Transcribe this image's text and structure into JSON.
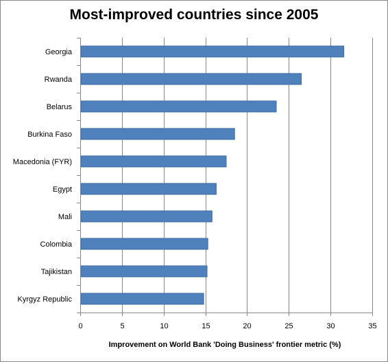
{
  "chart_data": {
    "type": "bar",
    "orientation": "horizontal",
    "title": "Most-improved countries since 2005",
    "xlabel": "Improvement on World Bank 'Doing Business' frontier metric (%)",
    "ylabel": "",
    "xlim": [
      0,
      35
    ],
    "xticks": [
      0,
      5,
      10,
      15,
      20,
      25,
      30,
      35
    ],
    "grid": "vertical",
    "legend": "none",
    "categories": [
      "Georgia",
      "Rwanda",
      "Belarus",
      "Burkina Faso",
      "Macedonia (FYR)",
      "Egypt",
      "Mali",
      "Colombia",
      "Tajikistan",
      "Kyrgyz Republic"
    ],
    "values": [
      31.6,
      26.5,
      23.5,
      18.5,
      17.5,
      16.3,
      15.8,
      15.3,
      15.2,
      14.8
    ],
    "colors": {
      "bar": "#4f81bd",
      "bar_border": "#3a6aa3",
      "grid": "#878787",
      "axis": "#878787"
    }
  }
}
